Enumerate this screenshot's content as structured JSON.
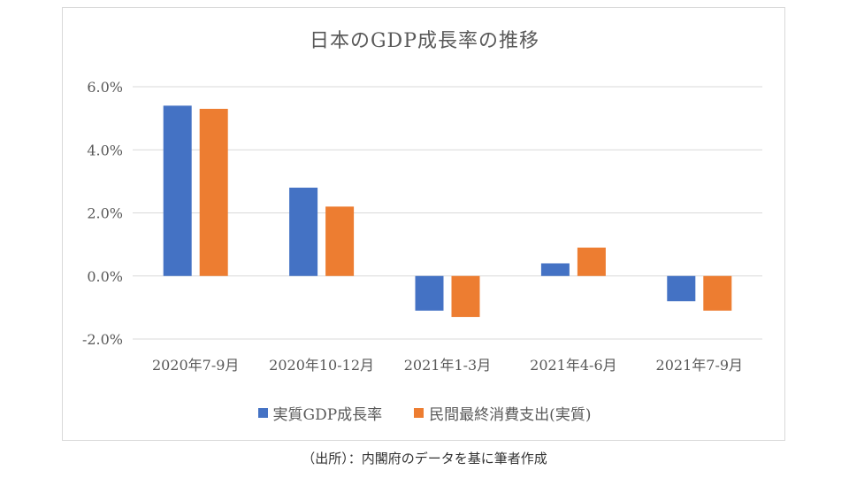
{
  "chart_data": {
    "type": "bar",
    "title": "日本のGDP成長率の推移",
    "categories": [
      "2020年7-9月",
      "2020年10-12月",
      "2021年1-3月",
      "2021年4-6月",
      "2021年7-9月"
    ],
    "series": [
      {
        "name": "実質GDP成長率",
        "color": "#4472c4",
        "values": [
          5.4,
          2.8,
          -1.1,
          0.4,
          -0.8
        ]
      },
      {
        "name": "民間最終消費支出(実質)",
        "color": "#ed7d31",
        "values": [
          5.3,
          2.2,
          -1.3,
          0.9,
          -1.1
        ]
      }
    ],
    "ylim": [
      -2,
      6
    ],
    "yticks": [
      -2,
      0,
      2,
      4,
      6
    ],
    "ytick_labels": [
      "-2.0%",
      "0.0%",
      "2.0%",
      "4.0%",
      "6.0%"
    ],
    "grid": true,
    "legend_position": "bottom",
    "xlabel": "",
    "ylabel": ""
  },
  "source_note": "（出所）：内閣府のデータを基に筆者作成"
}
